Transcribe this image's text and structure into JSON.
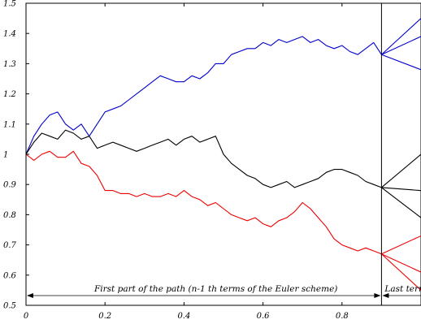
{
  "chart_data": {
    "type": "line",
    "title": "",
    "xlabel": "",
    "ylabel": "",
    "xlim": [
      0,
      1.0
    ],
    "ylim": [
      0.5,
      1.5
    ],
    "x_ticks": [
      "0",
      "0.2",
      "0.4",
      "0.6",
      "0.8"
    ],
    "x_tick_values": [
      0,
      0.2,
      0.4,
      0.6,
      0.8
    ],
    "y_ticks": [
      "0.5",
      "0.6",
      "0.7",
      "0.8",
      "0.9",
      "1",
      "1.1",
      "1.2",
      "1.3",
      "1.4",
      "1.5"
    ],
    "y_tick_values": [
      0.5,
      0.6,
      0.7,
      0.8,
      0.9,
      1.0,
      1.1,
      1.2,
      1.3,
      1.4,
      1.5
    ],
    "grid": false,
    "legend": "none",
    "split_x": 0.9,
    "annotations": {
      "first_part": "First part of the path (n-1 th terms of the Euler scheme)",
      "last_term": "Last term"
    },
    "series": [
      {
        "color": "#0000cc",
        "x": [
          0,
          0.02,
          0.04,
          0.06,
          0.08,
          0.1,
          0.12,
          0.14,
          0.16,
          0.18,
          0.2,
          0.22,
          0.24,
          0.26,
          0.28,
          0.3,
          0.32,
          0.34,
          0.36,
          0.38,
          0.4,
          0.42,
          0.44,
          0.46,
          0.48,
          0.5,
          0.52,
          0.54,
          0.56,
          0.58,
          0.6,
          0.62,
          0.64,
          0.66,
          0.68,
          0.7,
          0.72,
          0.74,
          0.76,
          0.78,
          0.8,
          0.82,
          0.84,
          0.86,
          0.88,
          0.9
        ],
        "y": [
          1.0,
          1.06,
          1.1,
          1.13,
          1.14,
          1.1,
          1.08,
          1.1,
          1.06,
          1.1,
          1.14,
          1.15,
          1.16,
          1.18,
          1.2,
          1.22,
          1.24,
          1.26,
          1.25,
          1.24,
          1.24,
          1.26,
          1.25,
          1.27,
          1.3,
          1.3,
          1.33,
          1.34,
          1.35,
          1.35,
          1.37,
          1.36,
          1.38,
          1.37,
          1.38,
          1.39,
          1.37,
          1.38,
          1.36,
          1.35,
          1.36,
          1.34,
          1.33,
          1.35,
          1.37,
          1.33
        ],
        "last_term_y": [
          1.45,
          1.39,
          1.28
        ]
      },
      {
        "color": "#000000",
        "x": [
          0,
          0.02,
          0.04,
          0.06,
          0.08,
          0.1,
          0.12,
          0.14,
          0.16,
          0.18,
          0.2,
          0.22,
          0.24,
          0.26,
          0.28,
          0.3,
          0.32,
          0.34,
          0.36,
          0.38,
          0.4,
          0.42,
          0.44,
          0.46,
          0.48,
          0.5,
          0.52,
          0.54,
          0.56,
          0.58,
          0.6,
          0.62,
          0.64,
          0.66,
          0.68,
          0.7,
          0.72,
          0.74,
          0.76,
          0.78,
          0.8,
          0.82,
          0.84,
          0.86,
          0.88,
          0.9
        ],
        "y": [
          1.0,
          1.04,
          1.07,
          1.06,
          1.05,
          1.08,
          1.07,
          1.05,
          1.06,
          1.02,
          1.03,
          1.04,
          1.03,
          1.02,
          1.01,
          1.02,
          1.03,
          1.04,
          1.05,
          1.03,
          1.05,
          1.06,
          1.04,
          1.05,
          1.06,
          1.0,
          0.97,
          0.95,
          0.93,
          0.92,
          0.9,
          0.89,
          0.9,
          0.91,
          0.89,
          0.9,
          0.91,
          0.92,
          0.94,
          0.95,
          0.95,
          0.94,
          0.93,
          0.91,
          0.9,
          0.89
        ],
        "last_term_y": [
          1.0,
          0.88,
          0.79
        ]
      },
      {
        "color": "#ee0000",
        "x": [
          0,
          0.02,
          0.04,
          0.06,
          0.08,
          0.1,
          0.12,
          0.14,
          0.16,
          0.18,
          0.2,
          0.22,
          0.24,
          0.26,
          0.28,
          0.3,
          0.32,
          0.34,
          0.36,
          0.38,
          0.4,
          0.42,
          0.44,
          0.46,
          0.48,
          0.5,
          0.52,
          0.54,
          0.56,
          0.58,
          0.6,
          0.62,
          0.64,
          0.66,
          0.68,
          0.7,
          0.72,
          0.74,
          0.76,
          0.78,
          0.8,
          0.82,
          0.84,
          0.86,
          0.88,
          0.9
        ],
        "y": [
          1.0,
          0.98,
          1.0,
          1.01,
          0.99,
          0.99,
          1.01,
          0.97,
          0.96,
          0.93,
          0.88,
          0.88,
          0.87,
          0.87,
          0.86,
          0.87,
          0.86,
          0.86,
          0.87,
          0.86,
          0.88,
          0.86,
          0.85,
          0.83,
          0.84,
          0.82,
          0.8,
          0.79,
          0.78,
          0.79,
          0.77,
          0.76,
          0.78,
          0.79,
          0.81,
          0.84,
          0.82,
          0.79,
          0.76,
          0.72,
          0.7,
          0.69,
          0.68,
          0.69,
          0.68,
          0.67
        ],
        "last_term_y": [
          0.73,
          0.61,
          0.55
        ]
      }
    ]
  }
}
